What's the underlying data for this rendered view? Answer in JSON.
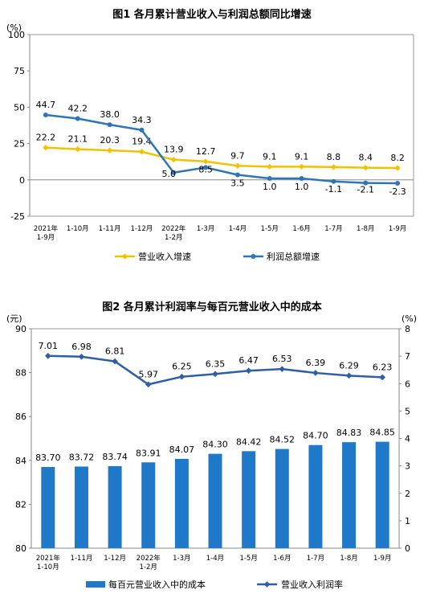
{
  "chart_data": [
    {
      "type": "line",
      "title": "图1  各月累计营业收入与利润总额同比增速",
      "unit": "(%)",
      "categories": [
        "2021年\n1-9月",
        "1-10月",
        "1-11月",
        "1-12月",
        "2022年\n1-2月",
        "1-3月",
        "1-4月",
        "1-5月",
        "1-6月",
        "1-7月",
        "1-8月",
        "1-9月"
      ],
      "ylim": [
        -25,
        100
      ],
      "yticks": [
        -25,
        0,
        25,
        50,
        75,
        100
      ],
      "series": [
        {
          "name": "营业收入增速",
          "color": "#F2C200",
          "values": [
            22.2,
            21.1,
            20.3,
            19.4,
            13.9,
            12.7,
            9.7,
            9.1,
            9.1,
            8.8,
            8.4,
            8.2
          ],
          "labels": [
            "22.2",
            "21.1",
            "20.3",
            "19.4",
            "13.9",
            "12.7",
            "9.7",
            "9.1",
            "9.1",
            "8.8",
            "8.4",
            "8.2"
          ]
        },
        {
          "name": "利润总额增速",
          "color": "#2E75B6",
          "values": [
            44.7,
            42.2,
            38.0,
            34.3,
            5.0,
            8.5,
            3.5,
            1.0,
            1.0,
            -1.1,
            -2.1,
            -2.3
          ],
          "labels": [
            "44.7",
            "42.2",
            "38.0",
            "34.3",
            "5.0",
            "8.5",
            "3.5",
            "1.0",
            "1.0",
            "-1.1",
            "-2.1",
            "-2.3"
          ]
        }
      ],
      "legend": "bottom",
      "grid": false
    },
    {
      "type": "bar+line",
      "title": "图2  各月累计利润率与每百元营业收入中的成本",
      "left_unit": "(元)",
      "right_unit": "(%)",
      "categories": [
        "2021年\n1-10月",
        "1-11月",
        "1-12月",
        "2022年\n1-2月",
        "1-3月",
        "1-4月",
        "1-5月",
        "1-6月",
        "1-7月",
        "1-8月",
        "1-9月"
      ],
      "left_ylim": [
        80,
        90
      ],
      "left_yticks": [
        80,
        82,
        84,
        86,
        88,
        90
      ],
      "right_ylim": [
        0,
        8
      ],
      "right_yticks": [
        0,
        1,
        2,
        3,
        4,
        5,
        6,
        7,
        8
      ],
      "bars": {
        "name": "每百元营业收入中的成本",
        "color": "#1F78C8",
        "values": [
          83.7,
          83.72,
          83.74,
          83.91,
          84.07,
          84.3,
          84.42,
          84.52,
          84.7,
          84.83,
          84.85
        ],
        "labels": [
          "83.70",
          "83.72",
          "83.74",
          "83.91",
          "84.07",
          "84.30",
          "84.42",
          "84.52",
          "84.70",
          "84.83",
          "84.85"
        ]
      },
      "line": {
        "name": "营业收入利润率",
        "color": "#2E5FA6",
        "values": [
          7.01,
          6.98,
          6.81,
          5.97,
          6.25,
          6.35,
          6.47,
          6.53,
          6.39,
          6.29,
          6.23
        ],
        "labels": [
          "7.01",
          "6.98",
          "6.81",
          "5.97",
          "6.25",
          "6.35",
          "6.47",
          "6.53",
          "6.39",
          "6.29",
          "6.23"
        ]
      },
      "legend": "bottom",
      "grid": false
    }
  ]
}
